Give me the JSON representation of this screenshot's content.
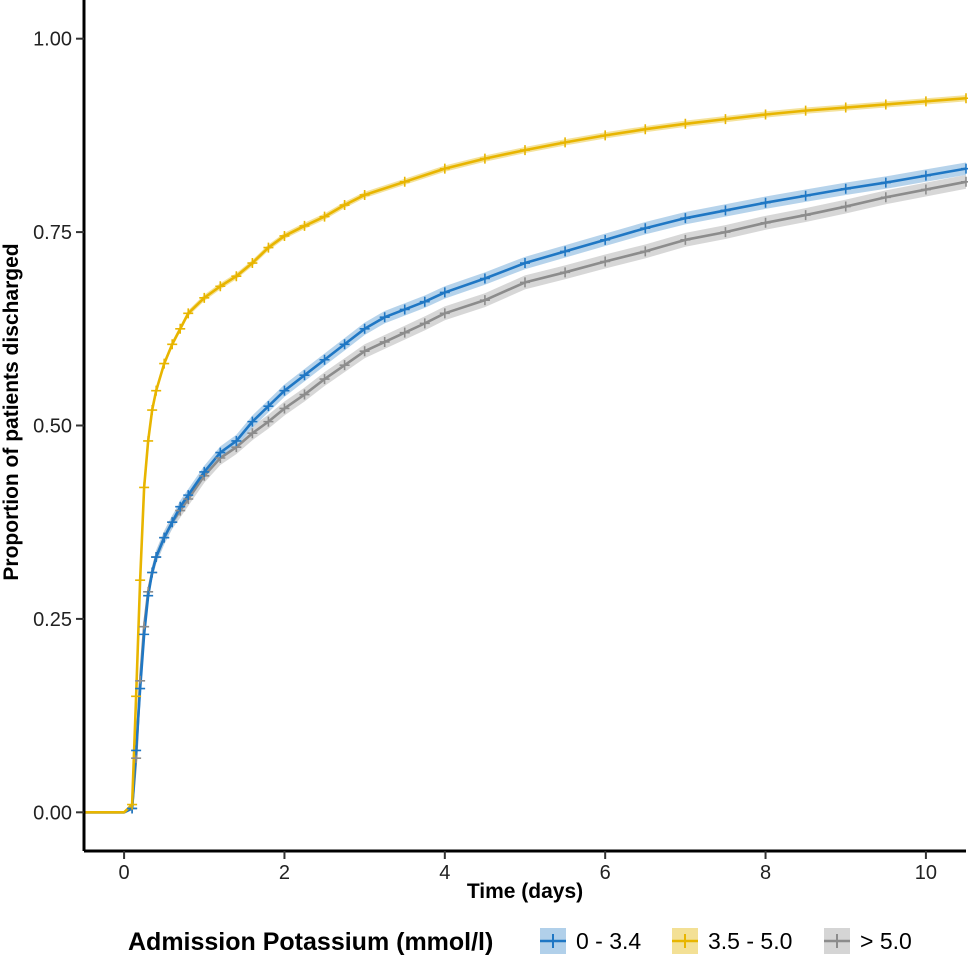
{
  "chart_data": {
    "type": "line",
    "xlabel": "Time (days)",
    "ylabel": "Proportion of patients discharged",
    "xlim": [
      -0.5,
      10.5
    ],
    "ylim": [
      -0.05,
      1.05
    ],
    "x_ticks": [
      0,
      2,
      4,
      6,
      8,
      10
    ],
    "x_tick_labels": [
      "0",
      "2",
      "4",
      "6",
      "8",
      "10"
    ],
    "y_ticks": [
      0,
      0.25,
      0.5,
      0.75,
      1.0
    ],
    "y_tick_labels": [
      "0.00",
      "0.25",
      "0.50",
      "0.75",
      "1.00"
    ],
    "grid": false,
    "legend": {
      "title": "Admission Potassium (mmol/l)",
      "position": "bottom"
    },
    "series": [
      {
        "name": "0 - 3.4",
        "color": "#1f77c4",
        "band_color": "#a9cbe8",
        "x": [
          -0.5,
          0.0,
          0.1,
          0.15,
          0.2,
          0.25,
          0.3,
          0.35,
          0.4,
          0.5,
          0.6,
          0.7,
          0.8,
          1.0,
          1.2,
          1.4,
          1.6,
          1.8,
          2.0,
          2.25,
          2.5,
          2.75,
          3.0,
          3.25,
          3.5,
          3.75,
          4.0,
          4.5,
          5.0,
          5.5,
          6.0,
          6.5,
          7.0,
          7.5,
          8.0,
          8.5,
          9.0,
          9.5,
          10.0,
          10.5
        ],
        "y": [
          0.0,
          0.0,
          0.005,
          0.08,
          0.16,
          0.23,
          0.28,
          0.31,
          0.33,
          0.355,
          0.375,
          0.395,
          0.41,
          0.44,
          0.465,
          0.48,
          0.505,
          0.525,
          0.545,
          0.565,
          0.585,
          0.605,
          0.625,
          0.64,
          0.65,
          0.66,
          0.672,
          0.69,
          0.71,
          0.725,
          0.74,
          0.755,
          0.768,
          0.778,
          0.788,
          0.797,
          0.806,
          0.814,
          0.823,
          0.832
        ],
        "band": 0.008
      },
      {
        "name": "3.5 - 5.0",
        "color": "#e8b500",
        "band_color": "#f2dd8a",
        "x": [
          -0.5,
          0.0,
          0.1,
          0.15,
          0.2,
          0.25,
          0.3,
          0.35,
          0.4,
          0.5,
          0.6,
          0.7,
          0.8,
          1.0,
          1.2,
          1.4,
          1.6,
          1.8,
          2.0,
          2.25,
          2.5,
          2.75,
          3.0,
          3.5,
          4.0,
          4.5,
          5.0,
          5.5,
          6.0,
          6.5,
          7.0,
          7.5,
          8.0,
          8.5,
          9.0,
          9.5,
          10.0,
          10.5
        ],
        "y": [
          0.0,
          0.0,
          0.01,
          0.15,
          0.3,
          0.42,
          0.48,
          0.52,
          0.545,
          0.58,
          0.605,
          0.625,
          0.645,
          0.665,
          0.68,
          0.693,
          0.71,
          0.73,
          0.745,
          0.758,
          0.77,
          0.785,
          0.798,
          0.815,
          0.832,
          0.845,
          0.856,
          0.866,
          0.875,
          0.883,
          0.89,
          0.896,
          0.902,
          0.907,
          0.911,
          0.915,
          0.919,
          0.923
        ],
        "band": 0.004
      },
      {
        "name": "> 5.0",
        "color": "#8c8c8c",
        "band_color": "#d0d0d0",
        "x": [
          -0.5,
          0.0,
          0.1,
          0.15,
          0.2,
          0.25,
          0.3,
          0.35,
          0.4,
          0.5,
          0.6,
          0.7,
          0.8,
          1.0,
          1.2,
          1.4,
          1.6,
          1.8,
          2.0,
          2.25,
          2.5,
          2.75,
          3.0,
          3.25,
          3.5,
          3.75,
          4.0,
          4.5,
          5.0,
          5.5,
          6.0,
          6.5,
          7.0,
          7.5,
          8.0,
          8.5,
          9.0,
          9.5,
          10.0,
          10.5
        ],
        "y": [
          0.0,
          0.0,
          0.005,
          0.07,
          0.17,
          0.24,
          0.285,
          0.31,
          0.33,
          0.355,
          0.375,
          0.39,
          0.405,
          0.435,
          0.458,
          0.472,
          0.49,
          0.505,
          0.522,
          0.54,
          0.56,
          0.578,
          0.596,
          0.608,
          0.62,
          0.632,
          0.645,
          0.662,
          0.685,
          0.698,
          0.712,
          0.725,
          0.74,
          0.75,
          0.762,
          0.772,
          0.783,
          0.795,
          0.805,
          0.815
        ],
        "band": 0.009
      }
    ]
  }
}
